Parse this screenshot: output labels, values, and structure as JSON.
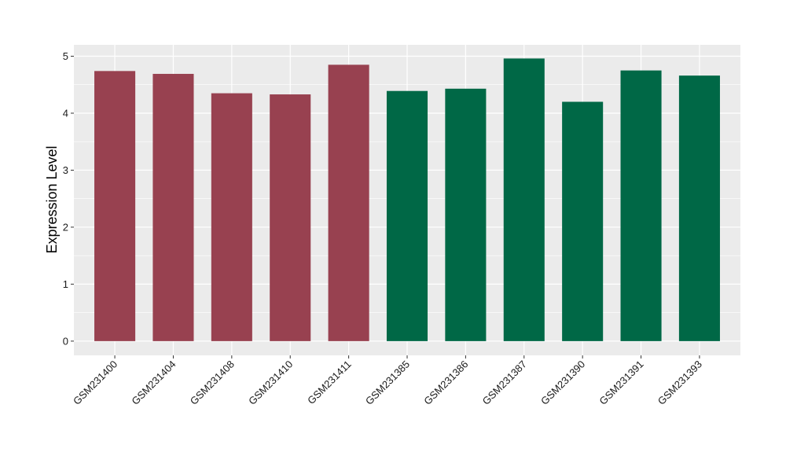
{
  "chart_data": {
    "type": "bar",
    "title": "",
    "xlabel": "",
    "ylabel": "Expression Level",
    "ylim": [
      -0.25,
      5.2
    ],
    "yticks": [
      0,
      1,
      2,
      3,
      4,
      5
    ],
    "grid": true,
    "legend": "none",
    "categories": [
      "GSM231400",
      "GSM231404",
      "GSM231408",
      "GSM231410",
      "GSM231411",
      "GSM231385",
      "GSM231386",
      "GSM231387",
      "GSM231390",
      "GSM231391",
      "GSM231393"
    ],
    "values": [
      4.74,
      4.69,
      4.35,
      4.33,
      4.85,
      4.39,
      4.43,
      4.96,
      4.2,
      4.75,
      4.66
    ],
    "bar_colors": [
      "#984150",
      "#984150",
      "#984150",
      "#984150",
      "#984150",
      "#006846",
      "#006846",
      "#006846",
      "#006846",
      "#006846",
      "#006846"
    ],
    "panel_background": "#ebebeb",
    "grid_color": "#ffffff"
  }
}
